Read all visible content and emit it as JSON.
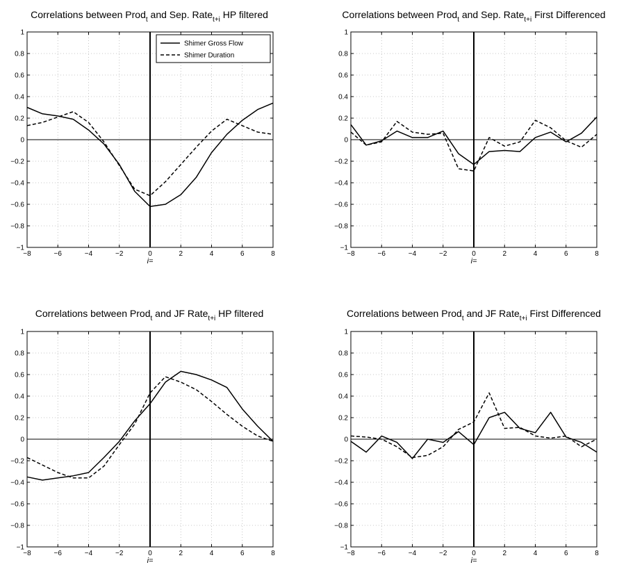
{
  "chart_data": [
    {
      "type": "line",
      "title": {
        "prefix": "Correlations between Prod",
        "sub1": "t",
        "mid": " and Sep. Rate",
        "sub2": "t+i",
        "suffix": " HP filtered"
      },
      "xlabel": "i=",
      "xlim": [
        -8,
        8
      ],
      "ylim": [
        -1,
        1
      ],
      "xticks": [
        "−8",
        "−6",
        "−4",
        "−2",
        "0",
        "2",
        "4",
        "6",
        "8"
      ],
      "yticks": [
        "−1",
        "−0.8",
        "−0.6",
        "−0.4",
        "−0.2",
        "0",
        "0.2",
        "0.4",
        "0.6",
        "0.8",
        "1"
      ],
      "grid": true,
      "legend": {
        "show": true,
        "location": "top-right"
      },
      "x": [
        -8,
        -7,
        -6,
        -5,
        -4,
        -3,
        -2,
        -1,
        0,
        1,
        2,
        3,
        4,
        5,
        6,
        7,
        8
      ],
      "series": [
        {
          "name": "Shimer Gross Flow",
          "style": "solid",
          "values": [
            0.3,
            0.24,
            0.22,
            0.19,
            0.09,
            -0.04,
            -0.23,
            -0.48,
            -0.62,
            -0.6,
            -0.51,
            -0.35,
            -0.12,
            0.05,
            0.18,
            0.28,
            0.34
          ]
        },
        {
          "name": "Shimer Duration",
          "style": "dashed",
          "values": [
            0.13,
            0.16,
            0.21,
            0.26,
            0.16,
            -0.02,
            -0.24,
            -0.46,
            -0.52,
            -0.39,
            -0.23,
            -0.07,
            0.08,
            0.19,
            0.13,
            0.07,
            0.05
          ]
        }
      ]
    },
    {
      "type": "line",
      "title": {
        "prefix": "Correlations between Prod",
        "sub1": "t",
        "mid": " and Sep. Rate",
        "sub2": "t+i",
        "suffix": " First Differenced"
      },
      "xlabel": "i=",
      "xlim": [
        -8,
        8
      ],
      "ylim": [
        -1,
        1
      ],
      "xticks": [
        "−8",
        "−6",
        "−4",
        "−2",
        "0",
        "2",
        "4",
        "6",
        "8"
      ],
      "yticks": [
        "−1",
        "−0.8",
        "−0.6",
        "−0.4",
        "−0.2",
        "0",
        "0.2",
        "0.4",
        "0.6",
        "0.8",
        "1"
      ],
      "grid": true,
      "legend": {
        "show": false
      },
      "x": [
        -8,
        -7,
        -6,
        -5,
        -4,
        -3,
        -2,
        -1,
        0,
        1,
        2,
        3,
        4,
        5,
        6,
        7,
        8
      ],
      "series": [
        {
          "style": "solid",
          "values": [
            0.14,
            -0.05,
            -0.01,
            0.08,
            0.02,
            0.02,
            0.08,
            -0.13,
            -0.23,
            -0.11,
            -0.1,
            -0.11,
            0.02,
            0.07,
            -0.02,
            0.06,
            0.21
          ]
        },
        {
          "style": "dashed",
          "values": [
            0.07,
            -0.05,
            -0.02,
            0.17,
            0.07,
            0.05,
            0.06,
            -0.27,
            -0.29,
            0.02,
            -0.06,
            -0.02,
            0.18,
            0.11,
            -0.01,
            -0.07,
            0.05
          ]
        }
      ]
    },
    {
      "type": "line",
      "title": {
        "prefix": "Correlations between Prod",
        "sub1": "t",
        "mid": " and JF Rate",
        "sub2": "t+i",
        "suffix": " HP filtered"
      },
      "xlabel": "i=",
      "xlim": [
        -8,
        8
      ],
      "ylim": [
        -1,
        1
      ],
      "xticks": [
        "−8",
        "−6",
        "−4",
        "−2",
        "0",
        "2",
        "4",
        "6",
        "8"
      ],
      "yticks": [
        "−1",
        "−0.8",
        "−0.6",
        "−0.4",
        "−0.2",
        "0",
        "0.2",
        "0.4",
        "0.6",
        "0.8",
        "1"
      ],
      "grid": true,
      "legend": {
        "show": false
      },
      "x": [
        -8,
        -7,
        -6,
        -5,
        -4,
        -3,
        -2,
        -1,
        0,
        1,
        2,
        3,
        4,
        5,
        6,
        7,
        8
      ],
      "series": [
        {
          "style": "solid",
          "values": [
            -0.35,
            -0.38,
            -0.36,
            -0.34,
            -0.31,
            -0.17,
            -0.02,
            0.17,
            0.33,
            0.53,
            0.63,
            0.6,
            0.55,
            0.48,
            0.28,
            0.12,
            -0.02
          ]
        },
        {
          "style": "dashed",
          "values": [
            -0.17,
            -0.24,
            -0.31,
            -0.36,
            -0.36,
            -0.25,
            -0.05,
            0.14,
            0.43,
            0.58,
            0.53,
            0.46,
            0.35,
            0.23,
            0.12,
            0.03,
            -0.02
          ]
        }
      ]
    },
    {
      "type": "line",
      "title": {
        "prefix": "Correlations between Prod",
        "sub1": "t",
        "mid": " and JF Rate",
        "sub2": "t+i",
        "suffix": " First Differenced"
      },
      "xlabel": "i=",
      "xlim": [
        -8,
        8
      ],
      "ylim": [
        -1,
        1
      ],
      "xticks": [
        "−8",
        "−6",
        "−4",
        "−2",
        "0",
        "2",
        "4",
        "6",
        "8"
      ],
      "yticks": [
        "−1",
        "−0.8",
        "−0.6",
        "−0.4",
        "−0.2",
        "0",
        "0.2",
        "0.4",
        "0.6",
        "0.8",
        "1"
      ],
      "grid": true,
      "legend": {
        "show": false
      },
      "x": [
        -8,
        -7,
        -6,
        -5,
        -4,
        -3,
        -2,
        -1,
        0,
        1,
        2,
        3,
        4,
        5,
        6,
        7,
        8
      ],
      "series": [
        {
          "style": "solid",
          "values": [
            -0.02,
            -0.12,
            0.03,
            -0.03,
            -0.18,
            0.0,
            -0.03,
            0.07,
            -0.05,
            0.2,
            0.25,
            0.1,
            0.06,
            0.25,
            0.02,
            -0.03,
            -0.12
          ]
        },
        {
          "style": "dashed",
          "values": [
            0.03,
            0.02,
            0.0,
            -0.07,
            -0.17,
            -0.15,
            -0.07,
            0.09,
            0.16,
            0.43,
            0.1,
            0.11,
            0.03,
            0.01,
            0.03,
            -0.07,
            0.0
          ]
        }
      ]
    }
  ]
}
